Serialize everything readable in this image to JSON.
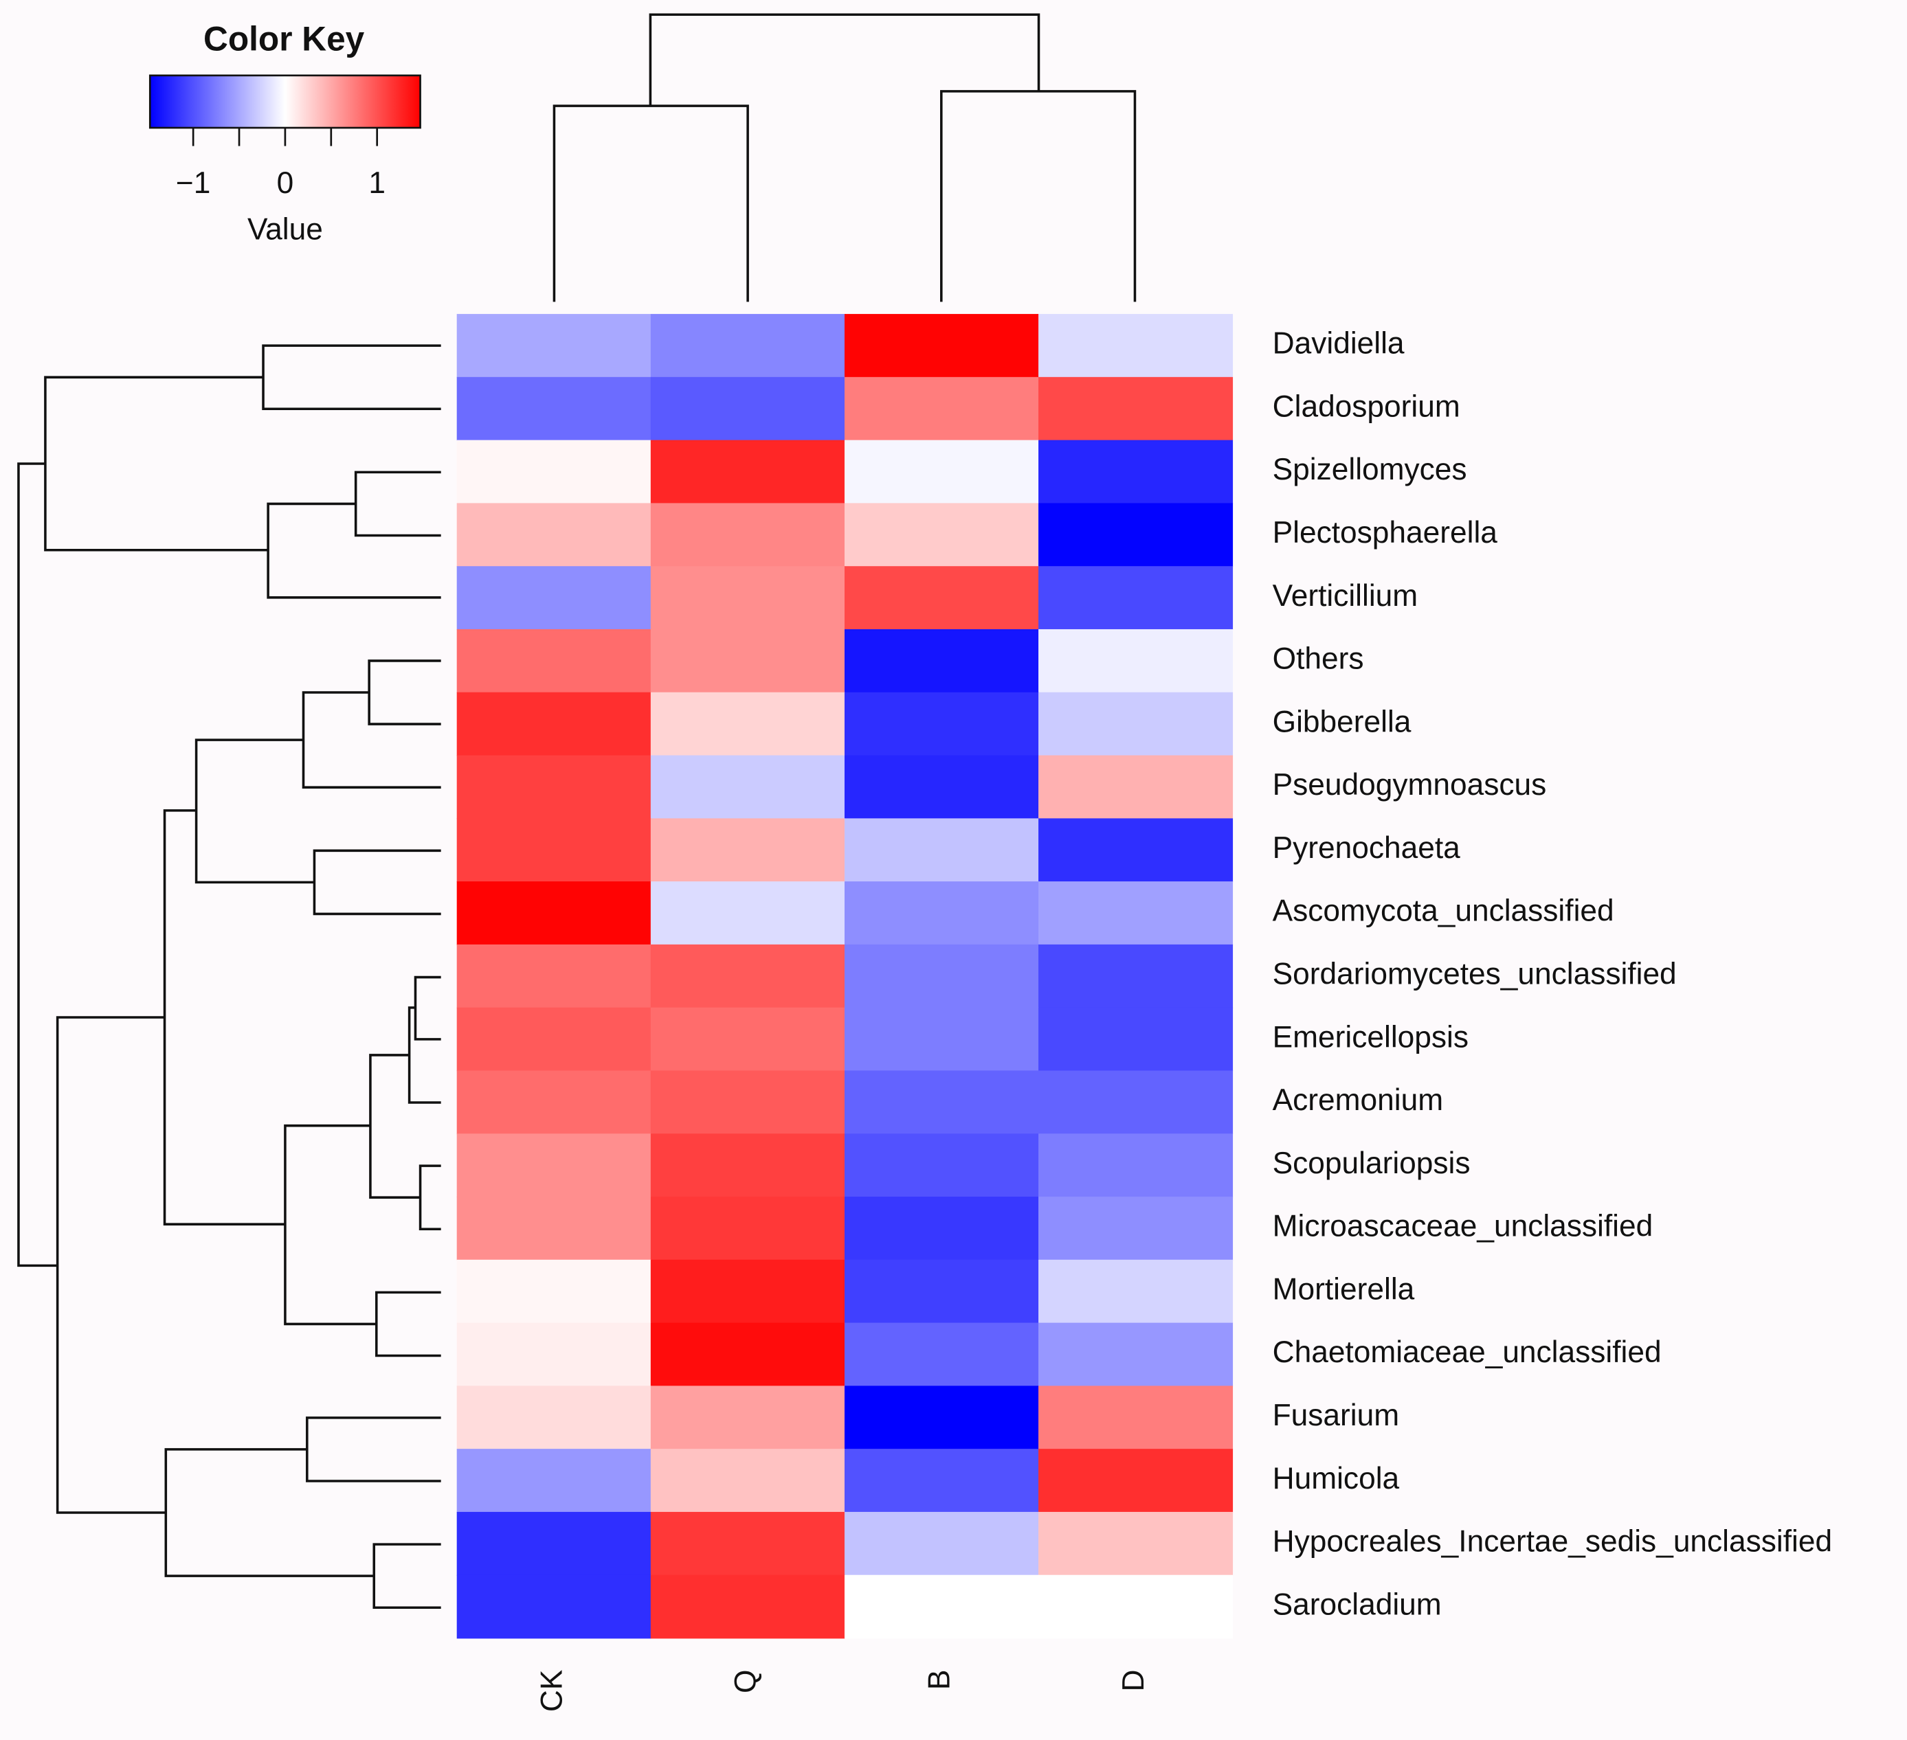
{
  "chart_data": {
    "type": "heatmap",
    "columns": [
      "CK",
      "Q",
      "B",
      "D"
    ],
    "rows": [
      "Davidiella",
      "Cladosporium",
      "Spizellomyces",
      "Plectosphaerella",
      "Verticillium",
      "Others",
      "Gibberella",
      "Pseudogymnoascus",
      "Pyrenochaeta",
      "Ascomycota_unclassified",
      "Sordariomycetes_unclassified",
      "Emericellopsis",
      "Acremonium",
      "Scopulariopsis",
      "Microascaceae_unclassified",
      "Mortierella",
      "Chaetomiaceae_unclassified",
      "Fusarium",
      "Humicola",
      "Hypocreales_Incertae_sedis_unclassified",
      "Sarocladium"
    ],
    "values": [
      [
        -0.5,
        -0.7,
        1.45,
        -0.2
      ],
      [
        -0.85,
        -0.95,
        0.75,
        1.05
      ],
      [
        0.05,
        1.25,
        -0.05,
        -1.25
      ],
      [
        0.4,
        0.7,
        0.3,
        -1.45
      ],
      [
        -0.65,
        0.65,
        1.05,
        -1.05
      ],
      [
        0.85,
        0.65,
        -1.35,
        -0.1
      ],
      [
        1.2,
        0.25,
        -1.2,
        -0.3
      ],
      [
        1.1,
        -0.3,
        -1.25,
        0.45
      ],
      [
        1.1,
        0.45,
        -0.35,
        -1.2
      ],
      [
        1.45,
        -0.2,
        -0.65,
        -0.55
      ],
      [
        0.85,
        0.95,
        -0.75,
        -1.05
      ],
      [
        0.95,
        0.85,
        -0.75,
        -1.05
      ],
      [
        0.85,
        0.95,
        -0.9,
        -0.9
      ],
      [
        0.65,
        1.1,
        -1.0,
        -0.75
      ],
      [
        0.65,
        1.15,
        -1.15,
        -0.65
      ],
      [
        0.05,
        1.3,
        -1.1,
        -0.25
      ],
      [
        0.1,
        1.4,
        -0.9,
        -0.6
      ],
      [
        0.2,
        0.55,
        -1.47,
        0.75
      ],
      [
        -0.6,
        0.35,
        -1.0,
        1.2
      ],
      [
        -1.2,
        1.15,
        -0.35,
        0.35
      ],
      [
        -1.2,
        1.2,
        0,
        0
      ]
    ],
    "colors": [
      "#0000ff",
      "#ffffff",
      "#ff0000"
    ],
    "color_key": {
      "title": "Color Key",
      "xlabel": "Value",
      "xlim": [
        -1.47,
        1.47
      ],
      "xticks": [
        {
          "value": -1,
          "label": "−1"
        },
        0,
        1
      ],
      "minor_ticks": [
        -0.5,
        0.5
      ]
    }
  }
}
